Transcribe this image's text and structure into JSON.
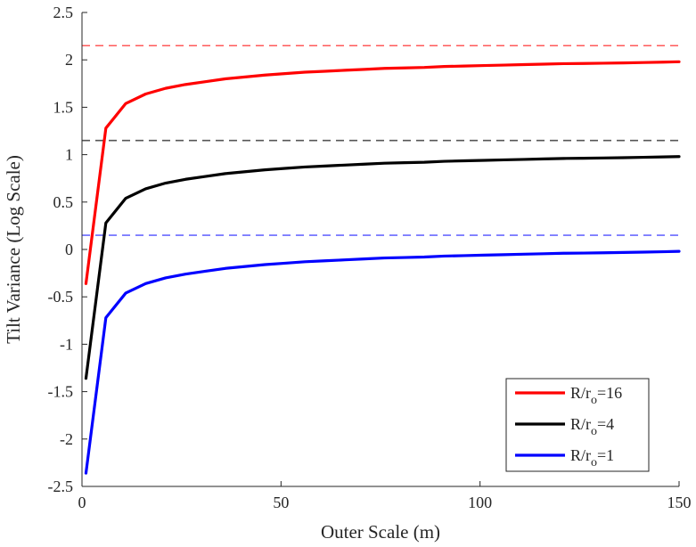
{
  "chart_data": {
    "type": "line",
    "title": "",
    "xlabel": "Outer Scale (m)",
    "ylabel": "Tilt Variance  (Log Scale)",
    "xlim": [
      0,
      150
    ],
    "ylim": [
      -2.5,
      2.5
    ],
    "x_ticks": [
      0,
      50,
      100,
      150
    ],
    "x_tick_labels": [
      "0",
      "50",
      "100",
      "150"
    ],
    "y_ticks": [
      -2.5,
      -2,
      -1.5,
      -1,
      -0.5,
      0,
      0.5,
      1,
      1.5,
      2,
      2.5
    ],
    "y_tick_labels": [
      "-2.5",
      "-2",
      "-1.5",
      "-1",
      "-0.5",
      "0",
      "0.5",
      "1",
      "1.5",
      "2",
      "2.5"
    ],
    "grid": false,
    "legend_position": "bottom-right",
    "x": [
      1,
      6,
      11,
      16,
      21,
      26,
      31,
      36,
      41,
      46,
      51,
      56,
      61,
      66,
      71,
      76,
      81,
      86,
      91,
      96,
      101,
      106,
      111,
      116,
      121,
      126,
      131,
      136,
      141,
      146,
      150
    ],
    "series": [
      {
        "name_prefix": "R/r",
        "name_sub": "o",
        "name_suffix": "=16",
        "color": "#ff0000",
        "values": [
          -0.36,
          1.28,
          1.54,
          1.64,
          1.7,
          1.74,
          1.77,
          1.8,
          1.82,
          1.84,
          1.855,
          1.87,
          1.88,
          1.89,
          1.9,
          1.91,
          1.915,
          1.92,
          1.93,
          1.935,
          1.94,
          1.945,
          1.95,
          1.955,
          1.96,
          1.962,
          1.965,
          1.968,
          1.972,
          1.976,
          1.98
        ],
        "asymptote": 2.15,
        "asymptote_color": "#ff5a5a"
      },
      {
        "name_prefix": "R/r",
        "name_sub": "o",
        "name_suffix": "=4",
        "color": "#000000",
        "values": [
          -1.36,
          0.28,
          0.54,
          0.64,
          0.7,
          0.74,
          0.77,
          0.8,
          0.82,
          0.84,
          0.855,
          0.87,
          0.88,
          0.89,
          0.9,
          0.91,
          0.915,
          0.92,
          0.93,
          0.935,
          0.94,
          0.945,
          0.95,
          0.955,
          0.96,
          0.962,
          0.965,
          0.968,
          0.972,
          0.976,
          0.98
        ],
        "asymptote": 1.15,
        "asymptote_color": "#555555"
      },
      {
        "name_prefix": "R/r",
        "name_sub": "o",
        "name_suffix": "=1",
        "color": "#0000ff",
        "values": [
          -2.36,
          -0.72,
          -0.46,
          -0.36,
          -0.3,
          -0.26,
          -0.23,
          -0.2,
          -0.18,
          -0.16,
          -0.145,
          -0.13,
          -0.12,
          -0.11,
          -0.1,
          -0.09,
          -0.085,
          -0.08,
          -0.07,
          -0.065,
          -0.06,
          -0.055,
          -0.05,
          -0.045,
          -0.04,
          -0.038,
          -0.035,
          -0.032,
          -0.028,
          -0.024,
          -0.02
        ],
        "asymptote": 0.15,
        "asymptote_color": "#6a6aff"
      }
    ]
  }
}
